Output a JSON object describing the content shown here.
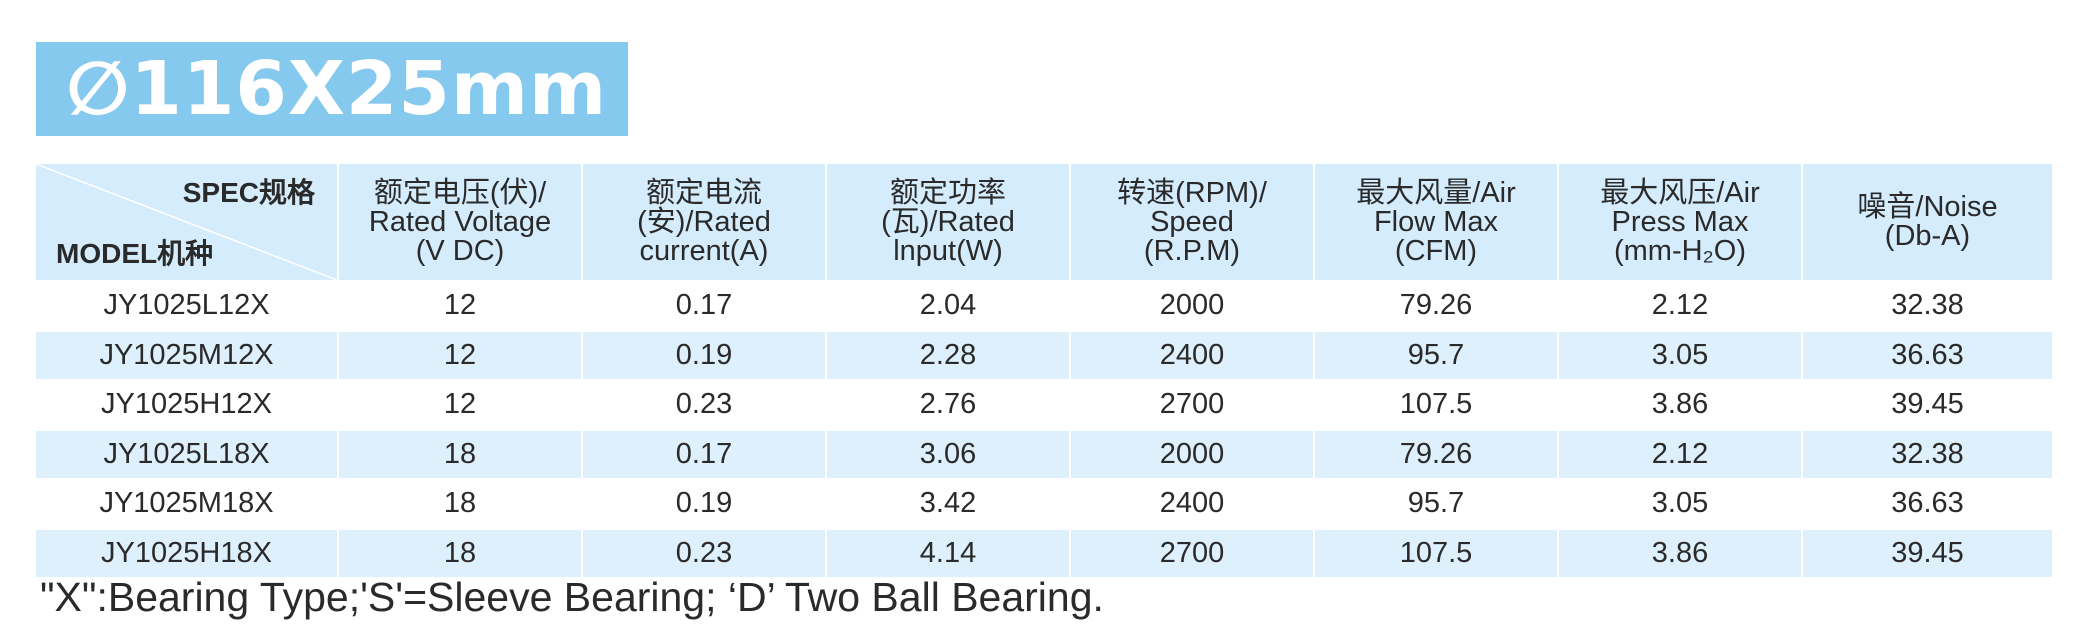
{
  "title": "∅116X25mm",
  "table": {
    "corner_spec": "SPEC规格",
    "corner_model": "MODEL机种",
    "headers": [
      [
        "额定电压(伏)/",
        "Rated Voltage",
        "(V DC)"
      ],
      [
        "额定电流",
        "(安)/Rated",
        "current(A)"
      ],
      [
        "额定功率",
        "(瓦)/Rated",
        "lnput(W)"
      ],
      [
        "转速(RPM)/",
        "Speed",
        "(R.P.M)"
      ],
      [
        "最大风量/Air",
        "Flow Max",
        "(CFM)"
      ],
      [
        "最大风压/Air",
        "Press Max",
        "(mm-H₂O)"
      ],
      [
        "噪音/Noise",
        "(Db-A)"
      ]
    ],
    "rows": [
      [
        "JY1025L12X",
        "12",
        "0.17",
        "2.04",
        "2000",
        "79.26",
        "2.12",
        "32.38"
      ],
      [
        "JY1025M12X",
        "12",
        "0.19",
        "2.28",
        "2400",
        "95.7",
        "3.05",
        "36.63"
      ],
      [
        "JY1025H12X",
        "12",
        "0.23",
        "2.76",
        "2700",
        "107.5",
        "3.86",
        "39.45"
      ],
      [
        "JY1025L18X",
        "18",
        "0.17",
        "3.06",
        "2000",
        "79.26",
        "2.12",
        "32.38"
      ],
      [
        "JY1025M18X",
        "18",
        "0.19",
        "3.42",
        "2400",
        "95.7",
        "3.05",
        "36.63"
      ],
      [
        "JY1025H18X",
        "18",
        "0.23",
        "4.14",
        "2700",
        "107.5",
        "3.86",
        "39.45"
      ]
    ]
  },
  "footnote": "\"X\":Bearing Type;'S'=Sleeve Bearing; ‘D’ Two Ball Bearing.",
  "colors": {
    "banner": "#86c9ef",
    "header_bg": "#d4ecfb",
    "row_stripe": "#ddf0fc"
  }
}
